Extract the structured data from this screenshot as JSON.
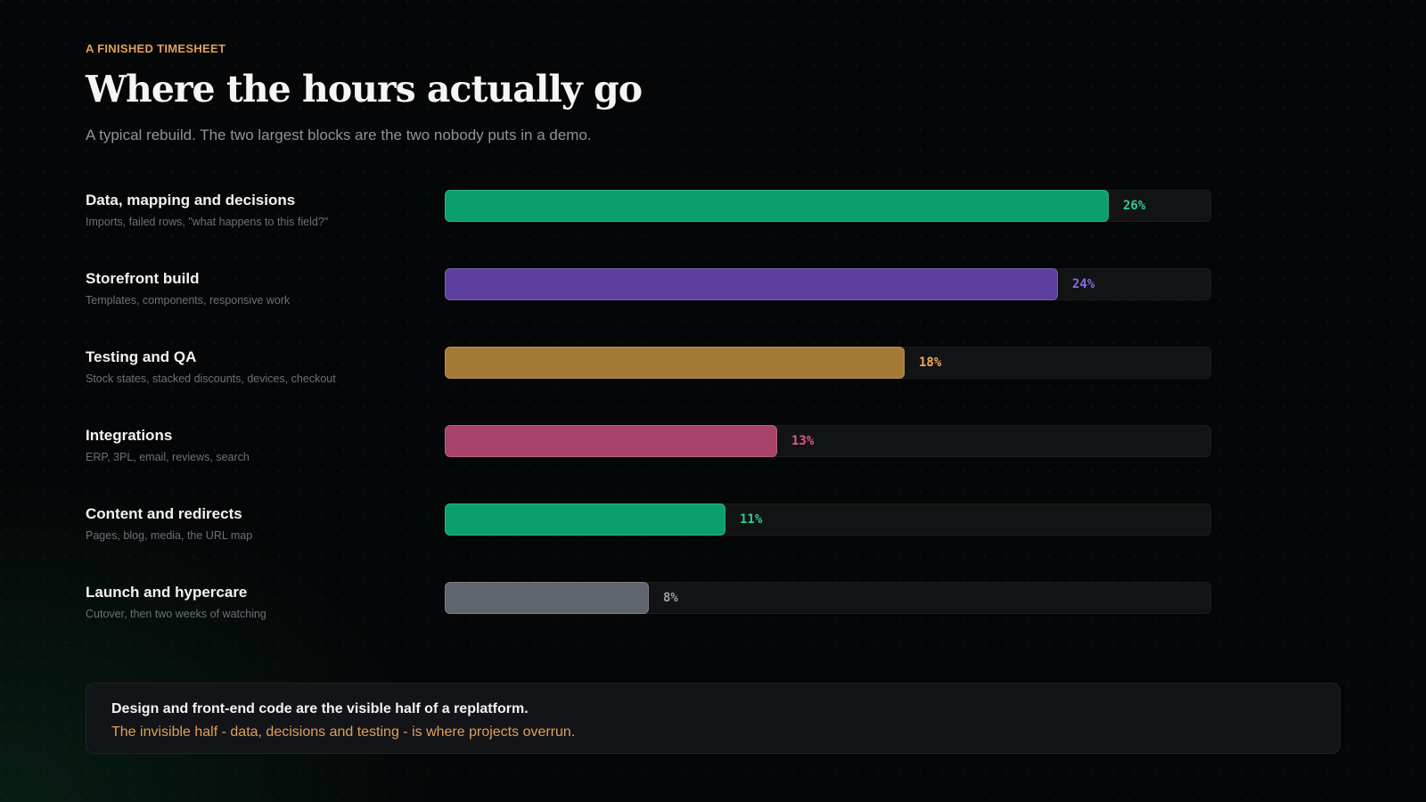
{
  "eyebrow": "A FINISHED TIMESHEET",
  "title": "Where the hours actually go",
  "subtitle": "A typical rebuild. The two largest blocks are the two nobody puts in a demo.",
  "chart_data": {
    "type": "bar",
    "orientation": "horizontal",
    "value_unit": "%",
    "xlim": [
      0,
      30
    ],
    "categories": [
      "Data, mapping and decisions",
      "Storefront build",
      "Testing and QA",
      "Integrations",
      "Content and redirects",
      "Launch and hypercare"
    ],
    "descriptions": [
      "Imports, failed rows, \"what happens to this field?\"",
      "Templates, components, responsive work",
      "Stock states, stacked discounts, devices, checkout",
      "ERP, 3PL, email, reviews, search",
      "Pages, blog, media, the URL map",
      "Cutover, then two weeks of watching"
    ],
    "values": [
      26,
      24,
      18,
      13,
      11,
      8
    ],
    "value_labels": [
      "26%",
      "24%",
      "18%",
      "13%",
      "11%",
      "8%"
    ],
    "colors": [
      "#0a9f6c",
      "#5c3f9e",
      "#a57a36",
      "#a5436b",
      "#0a9f6c",
      "#5f656c"
    ],
    "label_colors": [
      "#2dcf8f",
      "#8a6ee0",
      "#f0a860",
      "#e0578f",
      "#2dcf8f",
      "#9a9fa5"
    ]
  },
  "callout": {
    "line1": "Design and front-end code are the visible half of a replatform.",
    "line2": "The invisible half - data, decisions and testing - is where projects overrun."
  }
}
